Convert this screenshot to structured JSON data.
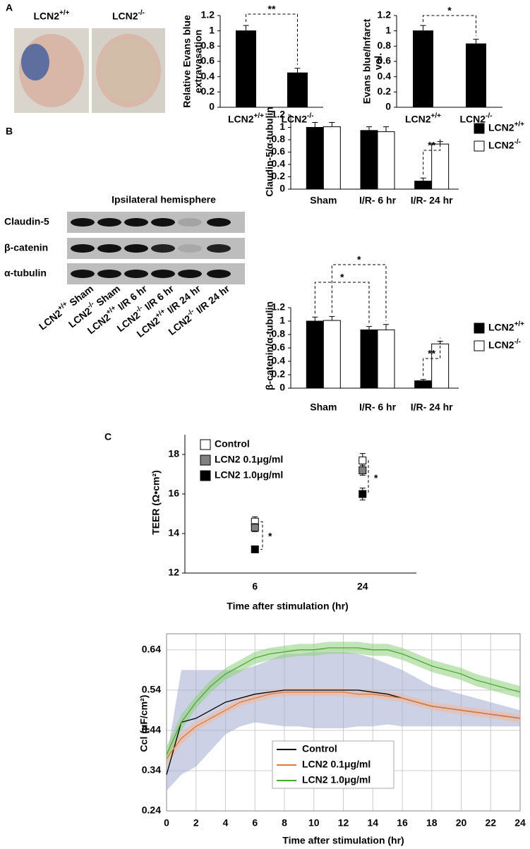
{
  "panel_labels": [
    "A",
    "B",
    "C"
  ],
  "photo_labels": [
    "LCN2+/+",
    "LCN2-/-"
  ],
  "blot": {
    "title": "Ipsilateral hemisphere",
    "rows": [
      "Claudin-5",
      "β-catenin",
      "α-tubulin"
    ],
    "lanes": [
      "LCN2+/+ Sham",
      "LCN2-/- Sham",
      "LCN2+/+ I/R 6 hr",
      "LCN2-/- I/R 6 hr",
      "LCN2+/+ I/R 24 hr",
      "LCN2-/- I/R 24 hr"
    ]
  },
  "chart_data": [
    {
      "type": "bar",
      "ylabel": "Relative Evans blue extravasation",
      "categories": [
        "LCN2+/+",
        "LCN2-/-"
      ],
      "series": [
        {
          "color": "#000000",
          "values": [
            1,
            0.45
          ],
          "errors": [
            0.07,
            0.06
          ]
        }
      ],
      "ylim": [
        0,
        1.2
      ],
      "yticks": [
        0,
        0.2,
        0.4,
        0.6,
        0.8,
        1,
        1.2
      ],
      "annotations": [
        "**"
      ]
    },
    {
      "type": "bar",
      "ylabel": "Evans blue/Infarct vol.",
      "categories": [
        "LCN2+/+",
        "LCN2-/-"
      ],
      "series": [
        {
          "color": "#000000",
          "values": [
            1,
            0.83
          ],
          "errors": [
            0.07,
            0.06
          ]
        }
      ],
      "ylim": [
        0,
        1.2
      ],
      "yticks": [
        0,
        0.2,
        0.4,
        0.6,
        0.8,
        1,
        1.2
      ],
      "annotations": [
        "*"
      ]
    },
    {
      "type": "bar",
      "ylabel": "Claudin-5/α-tubulin",
      "categories": [
        "Sham",
        "I/R- 6 hr",
        "I/R- 24 hr"
      ],
      "series": [
        {
          "name": "LCN2+/+",
          "color": "#000000",
          "values": [
            1,
            0.95,
            0.13
          ],
          "errors": [
            0.08,
            0.06,
            0.05
          ]
        },
        {
          "name": "LCN2-/-",
          "color": "#ffffff",
          "values": [
            1.01,
            0.93,
            0.73
          ],
          "errors": [
            0.07,
            0.08,
            0.04
          ]
        }
      ],
      "ylim": [
        0,
        1.2
      ],
      "yticks": [
        0,
        0.2,
        0.4,
        0.6,
        0.8,
        1,
        1.2
      ],
      "legend": "upper right",
      "annotations": [
        "**"
      ]
    },
    {
      "type": "bar",
      "ylabel": "β-catenin/α-tubulin",
      "categories": [
        "Sham",
        "I/R- 6 hr",
        "I/R- 24 hr"
      ],
      "series": [
        {
          "name": "LCN2+/+",
          "color": "#000000",
          "values": [
            1,
            0.87,
            0.11
          ],
          "errors": [
            0.06,
            0.05,
            0.02
          ]
        },
        {
          "name": "LCN2-/-",
          "color": "#ffffff",
          "values": [
            1.01,
            0.87,
            0.66
          ],
          "errors": [
            0.06,
            0.08,
            0.04
          ]
        }
      ],
      "ylim": [
        0,
        1.2
      ],
      "yticks": [
        0,
        0.2,
        0.4,
        0.6,
        0.8,
        1,
        1.2
      ],
      "legend": "upper right",
      "annotations": [
        "*",
        "*",
        "**"
      ]
    },
    {
      "type": "scatter",
      "ylabel": "TEER (Ω•cm²)",
      "xlabel": "Time after stimulation (hr)",
      "categories": [
        "6",
        "24"
      ],
      "series": [
        {
          "name": "Control",
          "color": "#ffffff",
          "values": [
            14.6,
            17.7
          ],
          "errors": [
            0.25,
            0.35
          ]
        },
        {
          "name": "LCN2 0.1μg/ml",
          "color": "#808080",
          "values": [
            14.3,
            17.2
          ],
          "errors": [
            0.2,
            0.25
          ]
        },
        {
          "name": "LCN2 1.0μg/ml",
          "color": "#000000",
          "values": [
            13.2,
            16.0
          ],
          "errors": [
            0.15,
            0.3
          ]
        }
      ],
      "ylim": [
        12,
        19
      ],
      "yticks": [
        12,
        14,
        16,
        18
      ],
      "legend": "upper left",
      "annotations": [
        "*",
        "*"
      ]
    },
    {
      "type": "line",
      "ylabel": "Ccl (μF/cm²)",
      "xlabel": "Time after stimulation (hr)",
      "x": [
        0,
        1,
        2,
        3,
        4,
        5,
        6,
        7,
        8,
        9,
        10,
        11,
        12,
        13,
        14,
        15,
        16,
        17,
        18,
        19,
        20,
        21,
        22,
        23,
        24
      ],
      "series": [
        {
          "name": "Control",
          "color": "#000000",
          "band_color": "#a4abcf",
          "values": [
            0.33,
            0.46,
            0.47,
            0.49,
            0.51,
            0.52,
            0.53,
            0.535,
            0.54,
            0.54,
            0.54,
            0.54,
            0.54,
            0.54,
            0.535,
            0.53,
            0.52,
            0.51,
            0.5,
            0.495,
            0.49,
            0.485,
            0.48,
            0.475,
            0.47
          ],
          "errors": [
            0.04,
            0.13,
            0.12,
            0.1,
            0.08,
            0.07,
            0.07,
            0.08,
            0.09,
            0.09,
            0.095,
            0.095,
            0.095,
            0.09,
            0.085,
            0.075,
            0.07,
            0.06,
            0.05,
            0.045,
            0.04,
            0.035,
            0.03,
            0.025,
            0.02
          ]
        },
        {
          "name": "LCN2 0.1μg/ml",
          "color": "#e07b39",
          "band_color": "#f2b89a",
          "values": [
            0.37,
            0.42,
            0.45,
            0.47,
            0.49,
            0.51,
            0.52,
            0.53,
            0.535,
            0.535,
            0.535,
            0.535,
            0.535,
            0.53,
            0.53,
            0.525,
            0.52,
            0.51,
            0.5,
            0.495,
            0.49,
            0.485,
            0.48,
            0.475,
            0.47
          ],
          "errors": [
            0.02,
            0.015,
            0.012,
            0.01,
            0.01,
            0.01,
            0.01,
            0.01,
            0.01,
            0.01,
            0.01,
            0.01,
            0.01,
            0.01,
            0.01,
            0.01,
            0.01,
            0.01,
            0.01,
            0.01,
            0.01,
            0.01,
            0.01,
            0.01,
            0.01
          ]
        },
        {
          "name": "LCN2 1.0μg/ml",
          "color": "#4aa832",
          "band_color": "#8fd07d",
          "values": [
            0.38,
            0.46,
            0.51,
            0.55,
            0.58,
            0.6,
            0.62,
            0.63,
            0.635,
            0.64,
            0.64,
            0.645,
            0.645,
            0.645,
            0.64,
            0.64,
            0.63,
            0.615,
            0.6,
            0.59,
            0.58,
            0.565,
            0.555,
            0.545,
            0.535
          ],
          "errors": [
            0.02,
            0.02,
            0.015,
            0.015,
            0.015,
            0.015,
            0.015,
            0.015,
            0.015,
            0.015,
            0.015,
            0.015,
            0.015,
            0.015,
            0.015,
            0.015,
            0.015,
            0.015,
            0.015,
            0.015,
            0.015,
            0.015,
            0.015,
            0.015,
            0.015
          ]
        }
      ],
      "xlim": [
        0,
        24
      ],
      "xticks": [
        0,
        2,
        4,
        6,
        8,
        10,
        12,
        14,
        16,
        18,
        20,
        22,
        24
      ],
      "ylim": [
        0.24,
        0.68
      ],
      "yticks": [
        0.24,
        0.34,
        0.44,
        0.54,
        0.64
      ],
      "grid": true,
      "legend": "lower right"
    }
  ]
}
